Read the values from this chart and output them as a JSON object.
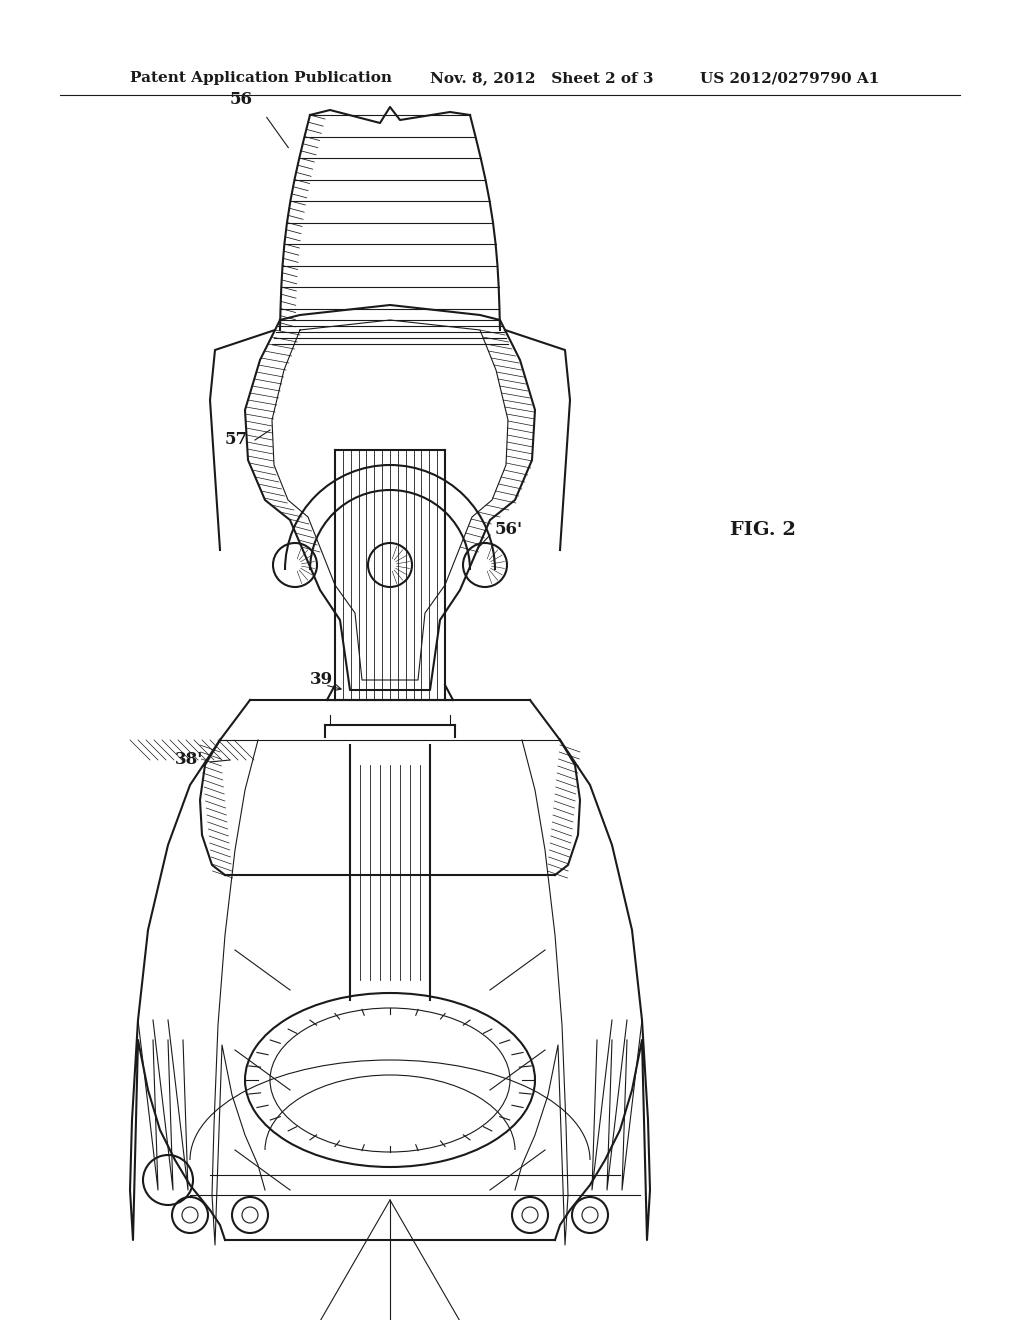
{
  "background_color": "#ffffff",
  "header_text_left": "Patent Application Publication",
  "header_text_mid": "Nov. 8, 2012   Sheet 2 of 3",
  "header_text_right": "US 2012/0279790 A1",
  "fig_label": "FIG. 2",
  "ref_numbers": [
    "56",
    "57",
    "56'",
    "38'",
    "39"
  ],
  "line_color": "#1a1a1a",
  "hatch_color": "#333333",
  "title": "Patent Drawing - FIG. 2"
}
